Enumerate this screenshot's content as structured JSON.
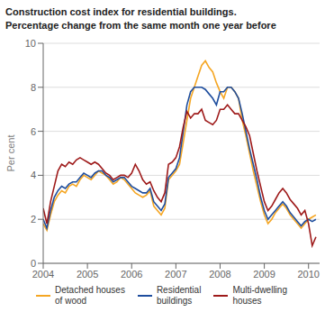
{
  "chart_data": {
    "type": "line",
    "title": "Construction cost index for residential buildings.",
    "subtitle": "Percentage change from the same month one year before",
    "y_label": "Per cent",
    "xlim": [
      2004.0,
      2010.25
    ],
    "xticks": [
      2004,
      2005,
      2006,
      2007,
      2008,
      2009,
      2010
    ],
    "ylim": [
      0,
      10
    ],
    "yticks": [
      0,
      2,
      4,
      6,
      8,
      10
    ],
    "grid": true,
    "legend": "bottom",
    "x": [
      2004.0,
      2004.083,
      2004.167,
      2004.25,
      2004.333,
      2004.417,
      2004.5,
      2004.583,
      2004.667,
      2004.75,
      2004.833,
      2004.917,
      2005.0,
      2005.083,
      2005.167,
      2005.25,
      2005.333,
      2005.417,
      2005.5,
      2005.583,
      2005.667,
      2005.75,
      2005.833,
      2005.917,
      2006.0,
      2006.083,
      2006.167,
      2006.25,
      2006.333,
      2006.417,
      2006.5,
      2006.583,
      2006.667,
      2006.75,
      2006.833,
      2006.917,
      2007.0,
      2007.083,
      2007.167,
      2007.25,
      2007.333,
      2007.417,
      2007.5,
      2007.583,
      2007.667,
      2007.75,
      2007.833,
      2007.917,
      2008.0,
      2008.083,
      2008.167,
      2008.25,
      2008.333,
      2008.417,
      2008.5,
      2008.583,
      2008.667,
      2008.75,
      2008.833,
      2008.917,
      2009.0,
      2009.083,
      2009.167,
      2009.25,
      2009.333,
      2009.417,
      2009.5,
      2009.583,
      2009.667,
      2009.75,
      2009.833,
      2009.917,
      2010.0,
      2010.083,
      2010.167
    ],
    "series": [
      {
        "name": "Detached houses\nof wood",
        "color": "#F5A623",
        "values": [
          1.8,
          1.5,
          2.2,
          2.8,
          3.1,
          3.3,
          3.2,
          3.5,
          3.6,
          3.5,
          3.8,
          4.0,
          3.9,
          3.8,
          4.0,
          4.2,
          4.1,
          4.0,
          3.8,
          3.6,
          3.7,
          3.9,
          3.8,
          3.6,
          3.4,
          3.2,
          3.1,
          3.0,
          3.1,
          3.3,
          2.6,
          2.4,
          2.2,
          2.5,
          3.8,
          4.0,
          4.2,
          4.5,
          5.5,
          6.5,
          7.5,
          8.0,
          8.5,
          9.0,
          9.2,
          8.9,
          8.7,
          8.2,
          7.8,
          7.5,
          8.0,
          8.0,
          7.8,
          7.5,
          6.5,
          5.8,
          5.0,
          4.2,
          3.5,
          2.8,
          2.2,
          1.8,
          2.0,
          2.3,
          2.5,
          2.7,
          2.5,
          2.2,
          2.0,
          1.8,
          1.6,
          1.8,
          2.0,
          2.1,
          2.2
        ]
      },
      {
        "name": "Residential\nbuildings",
        "color": "#1F4E9E",
        "values": [
          2.0,
          1.6,
          2.4,
          3.0,
          3.3,
          3.5,
          3.4,
          3.6,
          3.7,
          3.7,
          3.9,
          4.1,
          4.0,
          3.9,
          4.1,
          4.2,
          4.2,
          4.0,
          3.9,
          3.7,
          3.8,
          3.9,
          3.9,
          3.7,
          3.5,
          3.4,
          3.3,
          3.2,
          3.2,
          3.4,
          2.8,
          2.6,
          2.4,
          2.7,
          3.9,
          4.1,
          4.3,
          4.8,
          6.0,
          7.2,
          7.8,
          8.0,
          8.0,
          8.0,
          7.9,
          7.7,
          7.5,
          7.2,
          7.8,
          7.8,
          8.0,
          8.0,
          7.8,
          7.5,
          6.8,
          6.0,
          5.2,
          4.5,
          3.8,
          3.0,
          2.4,
          2.0,
          2.2,
          2.4,
          2.6,
          2.8,
          2.6,
          2.3,
          2.1,
          1.9,
          1.7,
          1.9,
          2.0,
          1.9,
          2.0
        ]
      },
      {
        "name": "Multi-dwelling\nhouses",
        "color": "#9E1A1A",
        "values": [
          2.5,
          1.8,
          2.8,
          3.5,
          4.2,
          4.5,
          4.4,
          4.6,
          4.5,
          4.7,
          4.8,
          4.7,
          4.6,
          4.5,
          4.6,
          4.5,
          4.3,
          4.1,
          4.0,
          3.8,
          3.9,
          4.0,
          4.0,
          3.9,
          4.1,
          4.5,
          4.2,
          3.8,
          3.6,
          3.7,
          3.3,
          3.0,
          2.8,
          3.2,
          4.5,
          4.6,
          4.8,
          5.3,
          6.2,
          6.9,
          6.6,
          6.8,
          6.8,
          7.0,
          6.5,
          6.4,
          6.3,
          6.5,
          7.0,
          7.0,
          7.2,
          7.0,
          6.8,
          6.8,
          6.5,
          6.2,
          5.8,
          5.0,
          4.2,
          3.5,
          2.8,
          2.4,
          2.6,
          2.9,
          3.2,
          3.4,
          3.2,
          2.9,
          2.7,
          2.5,
          2.2,
          2.4,
          1.8,
          0.8,
          1.2
        ]
      }
    ]
  }
}
